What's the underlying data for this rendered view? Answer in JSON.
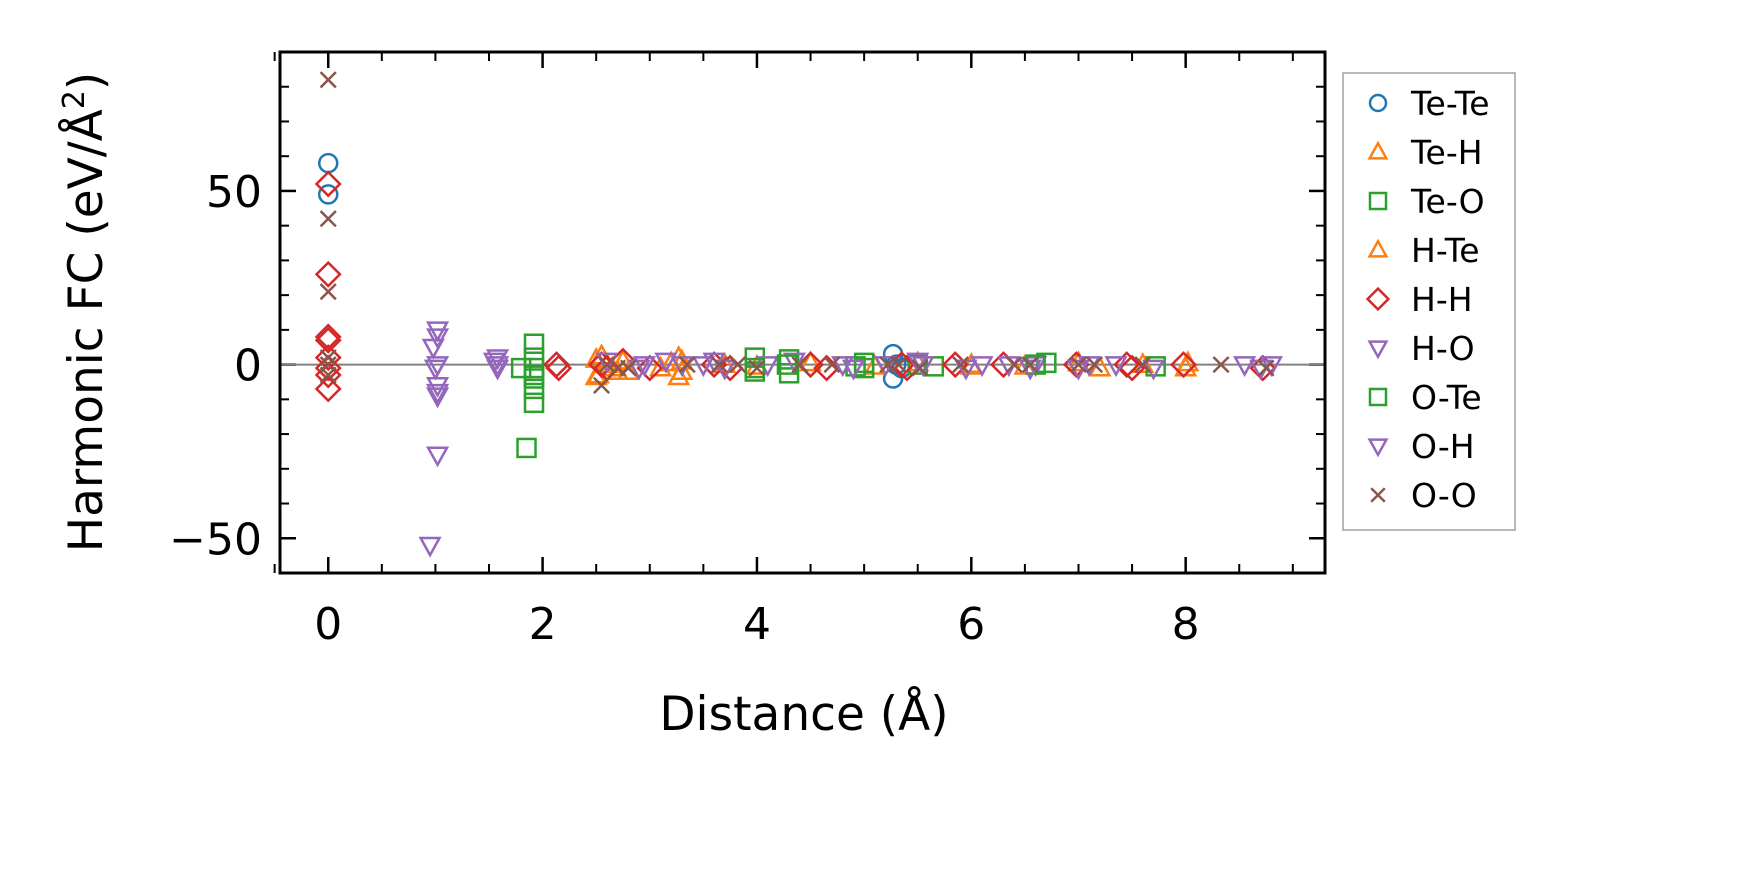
{
  "chart_data": {
    "type": "scatter",
    "xlabel": "Distance (Å)",
    "ylabel_main": "Harmonic FC (eV/Å",
    "ylabel_sup": "2",
    "ylabel_close": ")",
    "xlim": [
      -0.45,
      9.3
    ],
    "ylim": [
      -60,
      90
    ],
    "xticks": [
      0,
      2,
      4,
      6,
      8
    ],
    "xtick_labels": [
      "0",
      "2",
      "4",
      "6",
      "8"
    ],
    "yticks": [
      -50,
      0,
      50
    ],
    "ytick_labels": [
      "−50",
      "0",
      "50"
    ],
    "zero_line": true,
    "legend_position": "outside-right",
    "series": [
      {
        "name": "Te-Te",
        "label": "Te-Te",
        "marker": "circle",
        "color": "#1f77b4",
        "points": [
          [
            0,
            58
          ],
          [
            0,
            49
          ],
          [
            5.27,
            3
          ],
          [
            5.27,
            -4
          ],
          [
            5.3,
            0
          ],
          [
            5.35,
            -1
          ]
        ]
      },
      {
        "name": "Te-H",
        "label": "Te-H",
        "marker": "triangle-up",
        "color": "#ff7f0e",
        "points": [
          [
            2.5,
            1.5
          ],
          [
            2.52,
            -3
          ],
          [
            2.6,
            0
          ],
          [
            2.65,
            -1
          ],
          [
            2.75,
            1
          ],
          [
            3.1,
            -1
          ],
          [
            3.2,
            0.5
          ],
          [
            3.27,
            2
          ],
          [
            3.3,
            -2
          ],
          [
            3.7,
            0
          ],
          [
            4.0,
            -0.5
          ],
          [
            4.5,
            0.5
          ],
          [
            5.1,
            -0.5
          ],
          [
            5.5,
            0.5
          ],
          [
            6.0,
            0
          ],
          [
            6.5,
            -0.5
          ],
          [
            7.0,
            0.5
          ],
          [
            7.2,
            -1
          ],
          [
            7.6,
            0
          ],
          [
            8.0,
            -1
          ]
        ]
      },
      {
        "name": "Te-O",
        "label": "Te-O",
        "marker": "square",
        "color": "#2ca02c",
        "points": [
          [
            1.85,
            -24
          ],
          [
            1.92,
            6
          ],
          [
            1.92,
            2
          ],
          [
            1.92,
            -1
          ],
          [
            1.92,
            -4
          ],
          [
            1.92,
            -7
          ],
          [
            1.92,
            -11
          ],
          [
            1.8,
            -1
          ],
          [
            3.98,
            2
          ],
          [
            3.98,
            -2
          ],
          [
            4.3,
            1.5
          ],
          [
            4.3,
            -2.5
          ],
          [
            4.92,
            -0.5
          ],
          [
            5.0,
            0.5
          ],
          [
            5.5,
            0
          ],
          [
            5.65,
            -0.5
          ],
          [
            6.7,
            0.5
          ],
          [
            7.72,
            -0.5
          ]
        ]
      },
      {
        "name": "H-Te",
        "label": "H-Te",
        "marker": "triangle-up",
        "color": "#ff7f0e",
        "points": [
          [
            2.5,
            -3.5
          ],
          [
            2.55,
            2.5
          ],
          [
            2.7,
            -2
          ],
          [
            2.8,
            -2
          ],
          [
            3.27,
            -3.5
          ],
          [
            3.3,
            1
          ],
          [
            6.0,
            -0.5
          ],
          [
            8.02,
            0.5
          ]
        ]
      },
      {
        "name": "H-H",
        "label": "H-H",
        "marker": "diamond",
        "color": "#d62728",
        "points": [
          [
            0,
            52
          ],
          [
            0,
            26
          ],
          [
            0,
            8
          ],
          [
            0,
            7
          ],
          [
            0,
            2
          ],
          [
            0,
            -1
          ],
          [
            0,
            -3
          ],
          [
            0,
            -7
          ],
          [
            2.13,
            0
          ],
          [
            2.15,
            -1
          ],
          [
            2.55,
            0
          ],
          [
            2.6,
            -1
          ],
          [
            2.75,
            1
          ],
          [
            3.0,
            -1
          ],
          [
            3.6,
            0
          ],
          [
            3.75,
            -1
          ],
          [
            4.5,
            0
          ],
          [
            4.65,
            -1
          ],
          [
            5.35,
            0
          ],
          [
            5.4,
            -1
          ],
          [
            5.85,
            0
          ],
          [
            6.3,
            0
          ],
          [
            6.98,
            0
          ],
          [
            7.45,
            0
          ],
          [
            7.5,
            -1
          ],
          [
            7.98,
            0
          ],
          [
            8.72,
            -1
          ]
        ]
      },
      {
        "name": "H-O",
        "label": "H-O",
        "marker": "triangle-down",
        "color": "#9467bd",
        "points": [
          [
            0.95,
            -52
          ],
          [
            1.02,
            -26
          ],
          [
            1.02,
            -8
          ],
          [
            1.02,
            -6
          ],
          [
            1.02,
            0
          ],
          [
            1.02,
            8
          ],
          [
            1.02,
            10
          ],
          [
            0.98,
            5
          ],
          [
            1.58,
            2
          ],
          [
            1.58,
            0
          ],
          [
            1.58,
            -1
          ],
          [
            2.95,
            0
          ],
          [
            3.15,
            1
          ],
          [
            3.5,
            0
          ],
          [
            3.7,
            -1
          ],
          [
            4.1,
            0
          ],
          [
            4.35,
            1
          ],
          [
            4.8,
            0
          ],
          [
            5.55,
            0
          ],
          [
            5.95,
            -1
          ],
          [
            6.35,
            0
          ],
          [
            6.6,
            0
          ],
          [
            7.0,
            -1
          ],
          [
            7.35,
            0
          ],
          [
            8.55,
            0
          ],
          [
            8.8,
            0
          ]
        ]
      },
      {
        "name": "O-Te",
        "label": "O-Te",
        "marker": "square",
        "color": "#2ca02c",
        "points": [
          [
            1.92,
            -3
          ],
          [
            3.98,
            -1
          ],
          [
            4.28,
            0
          ],
          [
            5.0,
            -1
          ],
          [
            6.6,
            0
          ]
        ]
      },
      {
        "name": "O-H",
        "label": "O-H",
        "marker": "triangle-down",
        "color": "#9467bd",
        "points": [
          [
            1.0,
            -1
          ],
          [
            1.02,
            -9
          ],
          [
            1.55,
            1
          ],
          [
            2.6,
            1
          ],
          [
            2.9,
            -1
          ],
          [
            3.3,
            0
          ],
          [
            3.6,
            1
          ],
          [
            4.9,
            -1
          ],
          [
            5.2,
            0
          ],
          [
            5.5,
            1
          ],
          [
            6.1,
            0
          ],
          [
            6.55,
            -1
          ],
          [
            7.1,
            0
          ],
          [
            7.7,
            -1
          ],
          [
            8.7,
            -1
          ]
        ]
      },
      {
        "name": "O-O",
        "label": "O-O",
        "marker": "x",
        "color": "#8c564b",
        "points": [
          [
            0,
            82
          ],
          [
            0,
            42
          ],
          [
            0,
            21
          ],
          [
            0,
            2
          ],
          [
            0,
            0
          ],
          [
            0,
            -3
          ],
          [
            2.55,
            -6
          ],
          [
            2.6,
            0
          ],
          [
            2.7,
            -1
          ],
          [
            2.8,
            -1
          ],
          [
            3.35,
            0
          ],
          [
            3.65,
            0
          ],
          [
            3.82,
            0
          ],
          [
            4.0,
            -1
          ],
          [
            4.4,
            0
          ],
          [
            4.7,
            0
          ],
          [
            5.22,
            0
          ],
          [
            5.32,
            0
          ],
          [
            5.52,
            -1
          ],
          [
            5.9,
            0
          ],
          [
            6.4,
            0
          ],
          [
            6.55,
            0
          ],
          [
            7.0,
            0
          ],
          [
            7.15,
            0
          ],
          [
            7.6,
            0
          ],
          [
            8.33,
            0
          ],
          [
            8.75,
            -1
          ]
        ]
      }
    ]
  }
}
